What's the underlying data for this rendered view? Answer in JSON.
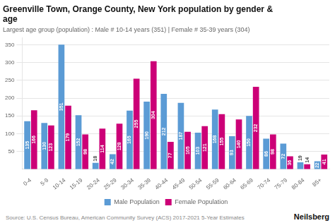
{
  "chart_data": {
    "type": "bar",
    "title": "Greenville Town, Orange County, New York population by gender &\nage",
    "subtitle": "Largest age group (population) : Male # 10-14 years (351) | Female # 35-39 years (304)",
    "annotations": [
      "Source: U.S. Census Bureau, American Community Survey (ACS) 2017-2021 5-Year Estimates",
      "Neilsberg"
    ],
    "categories": [
      "0-4",
      "5-9",
      "10-14",
      "15-19",
      "20-24",
      "25-29",
      "30-34",
      "35-39",
      "40-44",
      "45-49",
      "50-54",
      "55-59",
      "60-64",
      "65-69",
      "70-74",
      "75-79",
      "80-84",
      "85+"
    ],
    "series": [
      {
        "name": "Male Population",
        "color": "#5b9bd5",
        "values": [
          135,
          130,
          351,
          152,
          18,
          42,
          165,
          190,
          212,
          187,
          103,
          168,
          93,
          150,
          86,
          72,
          19,
          22
        ]
      },
      {
        "name": "Female Population",
        "color": "#cc0077",
        "values": [
          166,
          123,
          179,
          98,
          114,
          128,
          255,
          304,
          77,
          105,
          121,
          155,
          140,
          232,
          98,
          36,
          14,
          41
        ]
      }
    ],
    "ylim": [
      0,
      370
    ],
    "yticks": [
      50,
      100,
      150,
      200,
      250,
      300,
      350
    ],
    "grid": true,
    "legend": "bottom",
    "data_labels": true
  }
}
